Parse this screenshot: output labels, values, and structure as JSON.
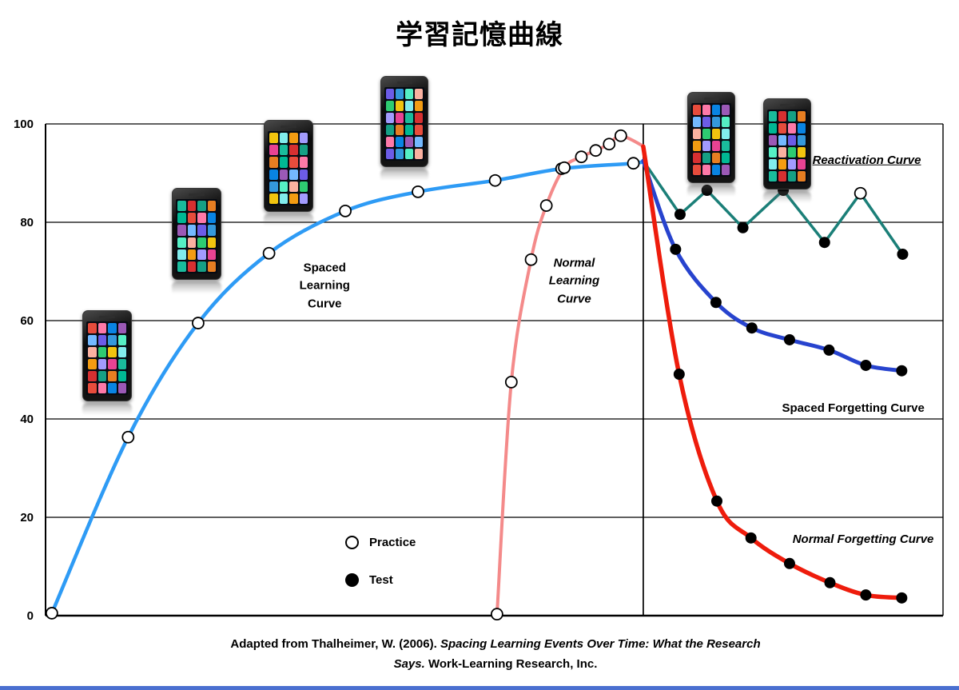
{
  "title": "学習記憶曲線",
  "chart_data": {
    "type": "line",
    "title": "学習記憶曲線",
    "xlabel": "",
    "ylabel": "",
    "ylim": [
      0,
      100
    ],
    "yticks": [
      0,
      20,
      40,
      60,
      80,
      100
    ],
    "grid": true,
    "x_axis_labels_visible": false,
    "event_line_x": 66.6,
    "legend": {
      "position": "lower-center",
      "items": [
        {
          "label": "Practice",
          "marker": "open-circle"
        },
        {
          "label": "Test",
          "marker": "filled-circle"
        }
      ]
    },
    "series": [
      {
        "id": "spaced_learning",
        "name": "Spaced Learning Curve",
        "color": "#2E9BF5",
        "width": 4.5,
        "smooth": true,
        "points": [
          [
            0.7,
            0.5
          ],
          [
            9.2,
            36.3
          ],
          [
            17.0,
            59.5
          ],
          [
            24.9,
            73.7
          ],
          [
            33.4,
            82.3
          ],
          [
            41.5,
            86.2
          ],
          [
            50.1,
            88.5
          ],
          [
            57.5,
            90.9
          ],
          [
            65.5,
            92.0
          ],
          [
            66.6,
            92.5
          ]
        ],
        "markers": [
          "open",
          "open",
          "open",
          "open",
          "open",
          "open",
          "open",
          "open",
          "open",
          "none"
        ]
      },
      {
        "id": "normal_learning",
        "name": "Normal Learning Curve",
        "color": "#F48A8A",
        "width": 4,
        "smooth": true,
        "points": [
          [
            50.3,
            0.3
          ],
          [
            51.9,
            47.5
          ],
          [
            54.1,
            72.4
          ],
          [
            55.8,
            83.4
          ],
          [
            57.8,
            91.1
          ],
          [
            59.7,
            93.3
          ],
          [
            61.3,
            94.6
          ],
          [
            62.8,
            95.9
          ],
          [
            64.1,
            97.6
          ],
          [
            66.6,
            95.5
          ]
        ],
        "markers": [
          "open",
          "open",
          "open",
          "open",
          "open",
          "open",
          "open",
          "open",
          "open",
          "none"
        ]
      },
      {
        "id": "reactivation",
        "name": "Reactivation Curve",
        "color": "#1B7F78",
        "width": 3.5,
        "smooth": false,
        "points": [
          [
            66.6,
            92.5
          ],
          [
            70.7,
            81.6
          ],
          [
            73.7,
            86.5
          ],
          [
            77.7,
            78.9
          ],
          [
            82.2,
            86.5
          ],
          [
            86.8,
            75.9
          ],
          [
            90.8,
            85.9
          ],
          [
            95.5,
            73.5
          ]
        ],
        "markers": [
          "none",
          "filled",
          "filled",
          "filled",
          "filled",
          "filled",
          "open",
          "filled"
        ]
      },
      {
        "id": "spaced_forgetting",
        "name": "Spaced Forgetting Curve",
        "color": "#2743CE",
        "width": 5,
        "smooth": true,
        "points": [
          [
            66.6,
            92.5
          ],
          [
            70.2,
            74.5
          ],
          [
            74.7,
            63.7
          ],
          [
            78.7,
            58.5
          ],
          [
            82.9,
            56.1
          ],
          [
            87.3,
            54.0
          ],
          [
            91.4,
            50.9
          ],
          [
            95.4,
            49.8
          ]
        ],
        "markers": [
          "none",
          "filled",
          "filled",
          "filled",
          "filled",
          "filled",
          "filled",
          "filled"
        ]
      },
      {
        "id": "normal_forgetting",
        "name": "Normal Forgetting Curve",
        "color": "#EE1C0C",
        "width": 5.5,
        "smooth": true,
        "points": [
          [
            66.6,
            95.4
          ],
          [
            70.6,
            49.1
          ],
          [
            74.8,
            23.3
          ],
          [
            78.6,
            15.8
          ],
          [
            82.9,
            10.6
          ],
          [
            87.4,
            6.7
          ],
          [
            91.4,
            4.2
          ],
          [
            95.4,
            3.6
          ]
        ],
        "markers": [
          "none",
          "filled",
          "filled",
          "filled",
          "filled",
          "filled",
          "filled",
          "filled"
        ]
      }
    ],
    "annotations": [
      {
        "text": "Spaced\nLearning\nCurve",
        "x": 31.1,
        "y": 67.0,
        "style": "bold"
      },
      {
        "text": "Normal\nLearning\nCurve",
        "x": 58.9,
        "y": 68.0,
        "style": "bold-italic"
      },
      {
        "text": "Reactivation Curve",
        "x": 91.5,
        "y": 92.5,
        "style": "bold-italic-underline"
      },
      {
        "text": "Spaced Forgetting Curve",
        "x": 90.0,
        "y": 42.1,
        "style": "bold"
      },
      {
        "text": "Normal Forgetting Curve",
        "x": 91.1,
        "y": 15.4,
        "style": "bold-italic"
      }
    ],
    "caption": {
      "line1_plain": "Adapted from Thalheimer, W. (2006). ",
      "line1_italic": "Spacing Learning Events Over Time: What the Research",
      "line2_italic": "Says.",
      "line2_plain": " Work-Learning Research, Inc."
    }
  },
  "decor": {
    "smartphone_icon": "smartphone-icon",
    "footer_strip_color": "#4A6FD0"
  }
}
